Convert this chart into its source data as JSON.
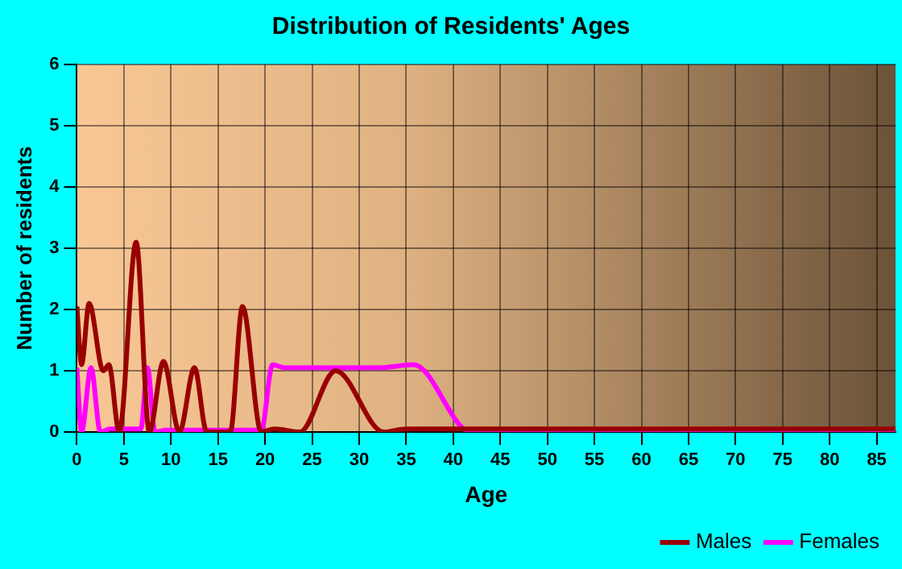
{
  "chart_data": {
    "type": "line",
    "title": "Distribution of Residents' Ages",
    "xlabel": "Age",
    "ylabel": "Number of residents",
    "xlim": [
      0,
      87
    ],
    "xticks": [
      0,
      5,
      10,
      15,
      20,
      25,
      30,
      35,
      40,
      45,
      50,
      55,
      60,
      65,
      70,
      75,
      80,
      85
    ],
    "ylim": [
      0,
      6
    ],
    "yticks": [
      0,
      1,
      2,
      3,
      4,
      5,
      6
    ],
    "grid": true,
    "legend": "bottom right",
    "marker": "none",
    "line_style": "solid",
    "series": [
      {
        "name": "Males",
        "color": "#990000",
        "x": [
          0,
          0.5,
          1.3,
          2.8,
          3.4,
          4.5,
          6.3,
          7.7,
          9.2,
          10.9,
          12.5,
          13.8,
          16.3,
          17.6,
          19.6,
          21,
          23.7,
          27.5,
          32.6,
          35,
          50,
          87
        ],
        "values": [
          2.05,
          1.1,
          2.1,
          1.0,
          1.1,
          0,
          3.1,
          0,
          1.15,
          0,
          1.05,
          0,
          0,
          2.05,
          0,
          0.05,
          0,
          1.0,
          0,
          0.05,
          0.05,
          0.05
        ]
      },
      {
        "name": "Females",
        "color": "#ff00ff",
        "x": [
          0,
          0.5,
          1.5,
          2.5,
          3.5,
          6.8,
          7.5,
          8.3,
          9.5,
          19.6,
          20.8,
          22,
          32.3,
          35.8,
          41.9,
          45,
          87
        ],
        "values": [
          1.05,
          0,
          1.05,
          0,
          0.05,
          0.05,
          1.05,
          0,
          0.03,
          0.03,
          1.1,
          1.05,
          1.05,
          1.1,
          0,
          0,
          0
        ]
      }
    ]
  }
}
